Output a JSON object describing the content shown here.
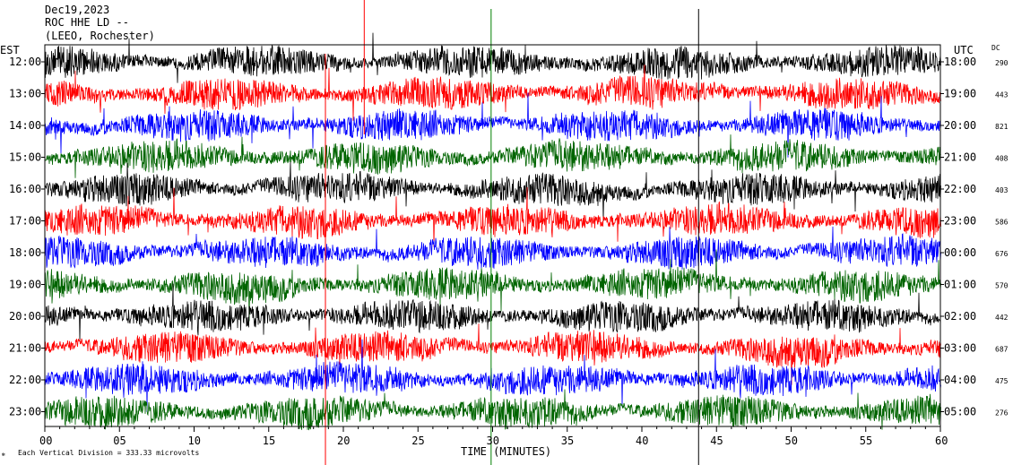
{
  "header": {
    "date": "Dec19,2023",
    "station": "ROC HHE LD --",
    "location": "(LEEO, Rochester)"
  },
  "labels": {
    "left_tz": "EST",
    "right_tz": "UTC",
    "dc": "DC",
    "xlabel": "TIME (MINUTES)",
    "footer": "Each Vertical Division =  333.33 microvolts"
  },
  "colors": {
    "trace_cycle": [
      "#000000",
      "#ff0000",
      "#0000ff",
      "#006400"
    ],
    "event_red": "#ff0000",
    "event_green": "#008000"
  },
  "chart_data": {
    "type": "line",
    "description_mode": "helicorder seismogram, one trace per hour",
    "x_range": [
      0,
      60
    ],
    "x_ticks": [
      "00",
      "05",
      "10",
      "15",
      "20",
      "25",
      "30",
      "35",
      "40",
      "45",
      "50",
      "55",
      "60"
    ],
    "rows": [
      {
        "est": "12:00",
        "utc": "18:00",
        "dc": "290"
      },
      {
        "est": "13:00",
        "utc": "19:00",
        "dc": "443"
      },
      {
        "est": "14:00",
        "utc": "20:00",
        "dc": "821"
      },
      {
        "est": "15:00",
        "utc": "21:00",
        "dc": "408"
      },
      {
        "est": "16:00",
        "utc": "22:00",
        "dc": "403"
      },
      {
        "est": "17:00",
        "utc": "23:00",
        "dc": "586"
      },
      {
        "est": "18:00",
        "utc": "00:00",
        "dc": "676"
      },
      {
        "est": "19:00",
        "utc": "01:00",
        "dc": "570"
      },
      {
        "est": "20:00",
        "utc": "02:00",
        "dc": "442"
      },
      {
        "est": "21:00",
        "utc": "03:00",
        "dc": "687"
      },
      {
        "est": "22:00",
        "utc": "04:00",
        "dc": "475"
      },
      {
        "est": "23:00",
        "utc": "05:00",
        "dc": "276"
      }
    ],
    "event_marks": [
      {
        "minute": 21.4,
        "color": "red"
      },
      {
        "minute": 18.8,
        "color": "red"
      },
      {
        "minute": 29.9,
        "color": "green"
      },
      {
        "minute": 43.8,
        "color": "black"
      }
    ]
  }
}
